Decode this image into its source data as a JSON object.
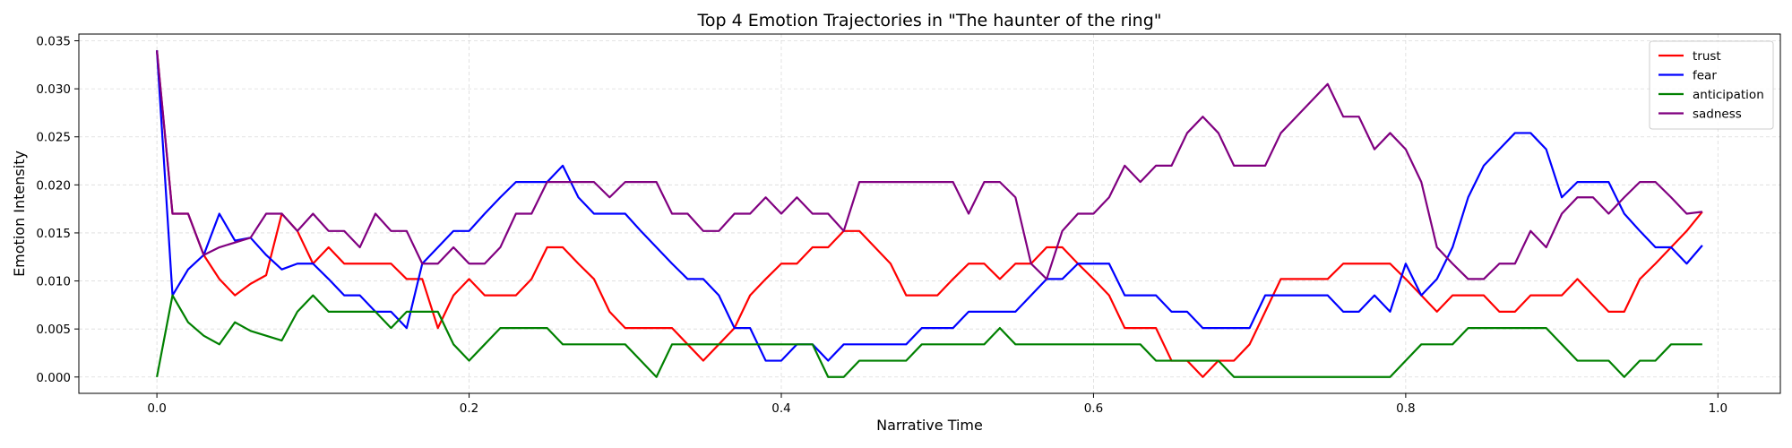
{
  "chart_data": {
    "type": "line",
    "title": "Top 4 Emotion Trajectories in \"The haunter of the ring\"",
    "xlabel": "Narrative Time",
    "ylabel": "Emotion Intensity",
    "xlim": [
      -0.05,
      1.04
    ],
    "ylim": [
      -0.0017,
      0.0357
    ],
    "xticks": [
      0.0,
      0.2,
      0.4,
      0.6,
      0.8,
      1.0
    ],
    "xtick_labels": [
      "0.0",
      "0.2",
      "0.4",
      "0.6",
      "0.8",
      "1.0"
    ],
    "yticks": [
      0.0,
      0.005,
      0.01,
      0.015,
      0.02,
      0.025,
      0.03,
      0.035
    ],
    "ytick_labels": [
      "0.000",
      "0.005",
      "0.010",
      "0.015",
      "0.020",
      "0.025",
      "0.030",
      "0.035"
    ],
    "grid": true,
    "legend_position": "top-right",
    "x": [
      0.0,
      0.01,
      0.02,
      0.03,
      0.04,
      0.05,
      0.06,
      0.07,
      0.08,
      0.09,
      0.1,
      0.11,
      0.12,
      0.13,
      0.14,
      0.15,
      0.16,
      0.17,
      0.18,
      0.19,
      0.2,
      0.21,
      0.22,
      0.23,
      0.24,
      0.25,
      0.26,
      0.27,
      0.28,
      0.29,
      0.3,
      0.31,
      0.32,
      0.33,
      0.34,
      0.35,
      0.36,
      0.37,
      0.38,
      0.39,
      0.4,
      0.41,
      0.42,
      0.43,
      0.44,
      0.45,
      0.46,
      0.47,
      0.48,
      0.49,
      0.5,
      0.51,
      0.52,
      0.53,
      0.54,
      0.55,
      0.56,
      0.57,
      0.58,
      0.59,
      0.6,
      0.61,
      0.62,
      0.63,
      0.64,
      0.65,
      0.66,
      0.67,
      0.68,
      0.69,
      0.7,
      0.71,
      0.72,
      0.73,
      0.74,
      0.75,
      0.76,
      0.77,
      0.78,
      0.79,
      0.8,
      0.81,
      0.82,
      0.83,
      0.84,
      0.85,
      0.86,
      0.87,
      0.88,
      0.89,
      0.9,
      0.91,
      0.92,
      0.93,
      0.94,
      0.95,
      0.96,
      0.97,
      0.98,
      0.99
    ],
    "series": [
      {
        "name": "trust",
        "color": "#ff0000",
        "values": [
          0.034,
          0.017,
          0.017,
          0.0127,
          0.0102,
          0.0085,
          0.0097,
          0.0106,
          0.017,
          0.0152,
          0.0118,
          0.0135,
          0.0118,
          0.0118,
          0.0118,
          0.0118,
          0.0102,
          0.0102,
          0.0051,
          0.0085,
          0.0102,
          0.0085,
          0.0085,
          0.0085,
          0.0102,
          0.0135,
          0.0135,
          0.0118,
          0.0102,
          0.0068,
          0.0051,
          0.0051,
          0.0051,
          0.0051,
          0.0034,
          0.0017,
          0.0034,
          0.0051,
          0.0085,
          0.0102,
          0.0118,
          0.0118,
          0.0135,
          0.0135,
          0.0152,
          0.0152,
          0.0135,
          0.0118,
          0.0085,
          0.0085,
          0.0085,
          0.0102,
          0.0118,
          0.0118,
          0.0102,
          0.0118,
          0.0118,
          0.0135,
          0.0135,
          0.0118,
          0.0102,
          0.0085,
          0.0051,
          0.0051,
          0.0051,
          0.0017,
          0.0017,
          0.0,
          0.0017,
          0.0017,
          0.0034,
          0.0068,
          0.0102,
          0.0102,
          0.0102,
          0.0102,
          0.0118,
          0.0118,
          0.0118,
          0.0118,
          0.0102,
          0.0085,
          0.0068,
          0.0085,
          0.0085,
          0.0085,
          0.0068,
          0.0068,
          0.0085,
          0.0085,
          0.0085,
          0.0102,
          0.0085,
          0.0068,
          0.0068,
          0.0102,
          0.0118,
          0.0135,
          0.0152,
          0.0172
        ]
      },
      {
        "name": "fear",
        "color": "#0000ff",
        "values": [
          0.034,
          0.0085,
          0.0112,
          0.0127,
          0.017,
          0.0142,
          0.0145,
          0.0127,
          0.0112,
          0.0118,
          0.0118,
          0.0102,
          0.0085,
          0.0085,
          0.0068,
          0.0068,
          0.0051,
          0.0118,
          0.0135,
          0.0152,
          0.0152,
          0.017,
          0.0187,
          0.0203,
          0.0203,
          0.0203,
          0.022,
          0.0187,
          0.017,
          0.017,
          0.017,
          0.0152,
          0.0135,
          0.0118,
          0.0102,
          0.0102,
          0.0085,
          0.0051,
          0.0051,
          0.0017,
          0.0017,
          0.0034,
          0.0034,
          0.0017,
          0.0034,
          0.0034,
          0.0034,
          0.0034,
          0.0034,
          0.0051,
          0.0051,
          0.0051,
          0.0068,
          0.0068,
          0.0068,
          0.0068,
          0.0085,
          0.0102,
          0.0102,
          0.0118,
          0.0118,
          0.0118,
          0.0085,
          0.0085,
          0.0085,
          0.0068,
          0.0068,
          0.0051,
          0.0051,
          0.0051,
          0.0051,
          0.0085,
          0.0085,
          0.0085,
          0.0085,
          0.0085,
          0.0068,
          0.0068,
          0.0085,
          0.0068,
          0.0118,
          0.0085,
          0.0102,
          0.0135,
          0.0187,
          0.022,
          0.0237,
          0.0254,
          0.0254,
          0.0237,
          0.0187,
          0.0203,
          0.0203,
          0.0203,
          0.017,
          0.0152,
          0.0135,
          0.0135,
          0.0118,
          0.0137
        ]
      },
      {
        "name": "anticipation",
        "color": "#008000",
        "values": [
          0.0,
          0.0085,
          0.0057,
          0.0043,
          0.0034,
          0.0057,
          0.0048,
          0.0043,
          0.0038,
          0.0068,
          0.0085,
          0.0068,
          0.0068,
          0.0068,
          0.0068,
          0.0051,
          0.0068,
          0.0068,
          0.0068,
          0.0034,
          0.0017,
          0.0034,
          0.0051,
          0.0051,
          0.0051,
          0.0051,
          0.0034,
          0.0034,
          0.0034,
          0.0034,
          0.0034,
          0.0017,
          0.0,
          0.0034,
          0.0034,
          0.0034,
          0.0034,
          0.0034,
          0.0034,
          0.0034,
          0.0034,
          0.0034,
          0.0034,
          0.0,
          0.0,
          0.0017,
          0.0017,
          0.0017,
          0.0017,
          0.0034,
          0.0034,
          0.0034,
          0.0034,
          0.0034,
          0.0051,
          0.0034,
          0.0034,
          0.0034,
          0.0034,
          0.0034,
          0.0034,
          0.0034,
          0.0034,
          0.0034,
          0.0017,
          0.0017,
          0.0017,
          0.0017,
          0.0017,
          0.0,
          0.0,
          0.0,
          0.0,
          0.0,
          0.0,
          0.0,
          0.0,
          0.0,
          0.0,
          0.0,
          0.0017,
          0.0034,
          0.0034,
          0.0034,
          0.0051,
          0.0051,
          0.0051,
          0.0051,
          0.0051,
          0.0051,
          0.0034,
          0.0017,
          0.0017,
          0.0017,
          0.0,
          0.0017,
          0.0017,
          0.0034,
          0.0034,
          0.0034
        ]
      },
      {
        "name": "sadness",
        "color": "#800080",
        "values": [
          0.034,
          0.017,
          0.017,
          0.0127,
          0.0135,
          0.014,
          0.0145,
          0.017,
          0.017,
          0.0152,
          0.017,
          0.0152,
          0.0152,
          0.0135,
          0.017,
          0.0152,
          0.0152,
          0.0118,
          0.0118,
          0.0135,
          0.0118,
          0.0118,
          0.0135,
          0.017,
          0.017,
          0.0203,
          0.0203,
          0.0203,
          0.0203,
          0.0187,
          0.0203,
          0.0203,
          0.0203,
          0.017,
          0.017,
          0.0152,
          0.0152,
          0.017,
          0.017,
          0.0187,
          0.017,
          0.0187,
          0.017,
          0.017,
          0.0152,
          0.0203,
          0.0203,
          0.0203,
          0.0203,
          0.0203,
          0.0203,
          0.0203,
          0.017,
          0.0203,
          0.0203,
          0.0187,
          0.0118,
          0.0102,
          0.0152,
          0.017,
          0.017,
          0.0187,
          0.022,
          0.0203,
          0.022,
          0.022,
          0.0254,
          0.0271,
          0.0254,
          0.022,
          0.022,
          0.022,
          0.0254,
          0.0271,
          0.0288,
          0.0305,
          0.0271,
          0.0271,
          0.0237,
          0.0254,
          0.0237,
          0.0203,
          0.0135,
          0.0118,
          0.0102,
          0.0102,
          0.0118,
          0.0118,
          0.0152,
          0.0135,
          0.017,
          0.0187,
          0.0187,
          0.017,
          0.0187,
          0.0203,
          0.0203,
          0.0187,
          0.017,
          0.0172
        ]
      }
    ]
  }
}
